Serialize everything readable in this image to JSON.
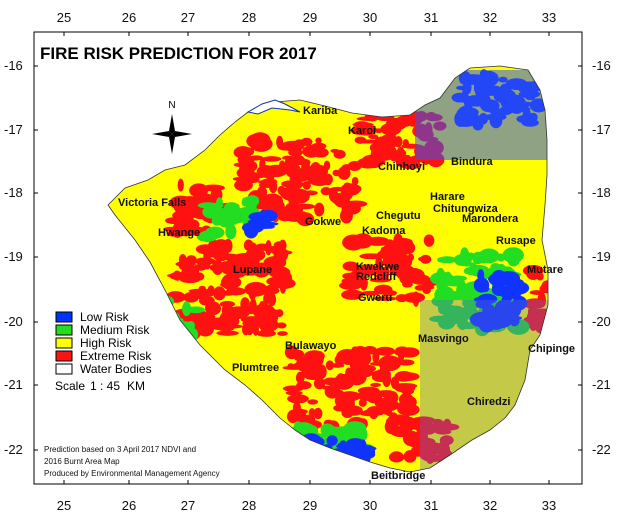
{
  "title": "FIRE RISK PREDICTION FOR 2017",
  "north_label": "N",
  "axes": {
    "x_ticks": [
      "25",
      "26",
      "27",
      "28",
      "29",
      "30",
      "31",
      "32",
      "33"
    ],
    "y_ticks": [
      "-16",
      "-17",
      "-18",
      "-19",
      "-20",
      "-21",
      "-22"
    ]
  },
  "cities": [
    "Kariba",
    "Karoi",
    "Chinhoyi",
    "Bindura",
    "Victoria Falls",
    "Harare",
    "Chitungwiza",
    "Marondera",
    "Gokwe",
    "Chegutu",
    "Kadoma",
    "Hwange",
    "Rusape",
    "Kwekwe",
    "Redcliff",
    "Lupane",
    "Mutare",
    "Gweru",
    "Masvingo",
    "Bulawayo",
    "Chipinge",
    "Plumtree",
    "Chiredzi",
    "Beitbridge"
  ],
  "legend": [
    {
      "label": "Low Risk",
      "color": "#0033ff"
    },
    {
      "label": "Medium Risk",
      "color": "#22dd22"
    },
    {
      "label": "High Risk",
      "color": "#ffff00"
    },
    {
      "label": "Extreme Risk",
      "color": "#ff1111"
    },
    {
      "label": "Water Bodies",
      "color": "#ffffff"
    }
  ],
  "scale": {
    "label": "Scale",
    "value": "1 : 45",
    "unit": "KM"
  },
  "notes": [
    "Prediction based on 3 April 2017 NDVI and",
    "2016 Burnt Area Map",
    "Produced by Environmental Management Agency"
  ]
}
